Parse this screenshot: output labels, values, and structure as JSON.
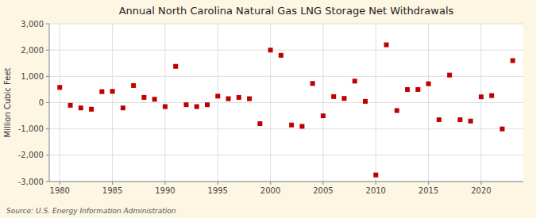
{
  "chart_data": {
    "type": "scatter",
    "title": "Annual North Carolina Natural Gas LNG Storage Net Withdrawals",
    "ylabel": "Million Cubic Feet",
    "source": "Source: U.S. Energy Information Administration",
    "x": [
      1980,
      1981,
      1982,
      1983,
      1984,
      1985,
      1986,
      1987,
      1988,
      1989,
      1990,
      1991,
      1992,
      1993,
      1994,
      1995,
      1996,
      1997,
      1998,
      1999,
      2000,
      2001,
      2002,
      2003,
      2004,
      2005,
      2006,
      2007,
      2008,
      2009,
      2010,
      2011,
      2012,
      2013,
      2014,
      2015,
      2016,
      2017,
      2018,
      2019,
      2020,
      2021,
      2022,
      2023
    ],
    "values": [
      580,
      -100,
      -200,
      -250,
      420,
      430,
      -200,
      650,
      200,
      130,
      -150,
      1380,
      -80,
      -150,
      -80,
      250,
      150,
      200,
      150,
      -800,
      2000,
      1800,
      -850,
      -900,
      730,
      -500,
      230,
      160,
      820,
      50,
      -2750,
      2200,
      -300,
      500,
      500,
      720,
      -650,
      1050,
      -650,
      -700,
      220,
      270,
      -1000,
      1600
    ],
    "color": "#c00000",
    "marker": "square",
    "xlim": [
      1979,
      2024
    ],
    "xticks": [
      1980,
      1985,
      1990,
      1995,
      2000,
      2005,
      2010,
      2015,
      2020
    ],
    "ylim": [
      -3000,
      3000
    ],
    "yticks": [
      {
        "value": -3000,
        "label": "-3,000"
      },
      {
        "value": -2000,
        "label": "-2,000"
      },
      {
        "value": -1000,
        "label": "-1,000"
      },
      0,
      {
        "value": 1000,
        "label": "1,000"
      },
      {
        "value": 2000,
        "label": "2,000"
      },
      {
        "value": 3000,
        "label": "3,000"
      }
    ],
    "grid": true
  }
}
